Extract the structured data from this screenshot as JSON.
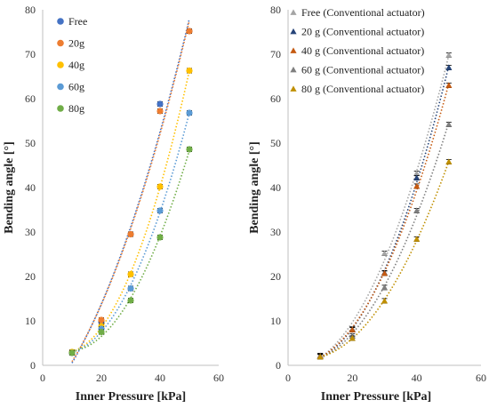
{
  "chart_data": [
    {
      "type": "scatter",
      "xlabel": "Inner Pressure [kPa]",
      "ylabel": "Bending angle [°]",
      "xlim": [
        0,
        60
      ],
      "ylim": [
        0,
        80
      ],
      "xticks": [
        0,
        20,
        40,
        60
      ],
      "yticks": [
        0,
        10,
        20,
        30,
        40,
        50,
        60,
        70,
        80
      ],
      "legend_position": "top-left",
      "trendline": "dotted",
      "grid": false,
      "x": [
        10,
        20,
        30,
        40,
        50
      ],
      "series": [
        {
          "name": "Free",
          "color": "#4472C4",
          "marker": "circle",
          "values": [
            2.8,
            9.8,
            29.5,
            58.8,
            75.2
          ]
        },
        {
          "name": "20g",
          "color": "#ED7D31",
          "marker": "circle",
          "values": [
            2.8,
            10.2,
            29.5,
            57.2,
            75.2
          ]
        },
        {
          "name": "40g",
          "color": "#FFC000",
          "marker": "circle",
          "values": [
            3.0,
            8.8,
            20.5,
            40.2,
            66.3
          ]
        },
        {
          "name": "60g",
          "color": "#5B9BD5",
          "marker": "circle",
          "values": [
            2.8,
            8.2,
            17.3,
            34.8,
            56.8
          ]
        },
        {
          "name": "80g",
          "color": "#70AD47",
          "marker": "circle",
          "values": [
            2.8,
            7.5,
            14.6,
            28.8,
            48.6
          ]
        }
      ]
    },
    {
      "type": "scatter",
      "xlabel": "Inner Pressure [kPa]",
      "ylabel": "Bending angle [°]",
      "xlim": [
        0,
        60
      ],
      "ylim": [
        0,
        80
      ],
      "xticks": [
        0,
        20,
        40,
        60
      ],
      "yticks": [
        0,
        10,
        20,
        30,
        40,
        50,
        60,
        70,
        80
      ],
      "legend_position": "top-left",
      "trendline": "dotted",
      "grid": false,
      "x": [
        10,
        20,
        30,
        40,
        50
      ],
      "series": [
        {
          "name": "Free (Conventional actuator)",
          "color": "#A5A5A5",
          "marker": "triangle",
          "values": [
            2.2,
            8.2,
            25.2,
            43.2,
            69.8
          ]
        },
        {
          "name": "20 g (Conventional actuator)",
          "color": "#264478",
          "marker": "triangle",
          "values": [
            2.1,
            8.0,
            20.8,
            42.2,
            67.0
          ]
        },
        {
          "name": "40 g (Conventional actuator)",
          "color": "#C55A11",
          "marker": "triangle",
          "values": [
            2.1,
            8.0,
            20.7,
            40.3,
            63.0
          ]
        },
        {
          "name": "60 g (Conventional actuator)",
          "color": "#7F7F7F",
          "marker": "triangle",
          "values": [
            2.0,
            6.6,
            17.5,
            34.8,
            54.2
          ]
        },
        {
          "name": "80 g (Conventional actuator)",
          "color": "#BF8F00",
          "marker": "triangle",
          "values": [
            1.9,
            6.1,
            14.5,
            28.4,
            45.8
          ]
        }
      ]
    }
  ]
}
